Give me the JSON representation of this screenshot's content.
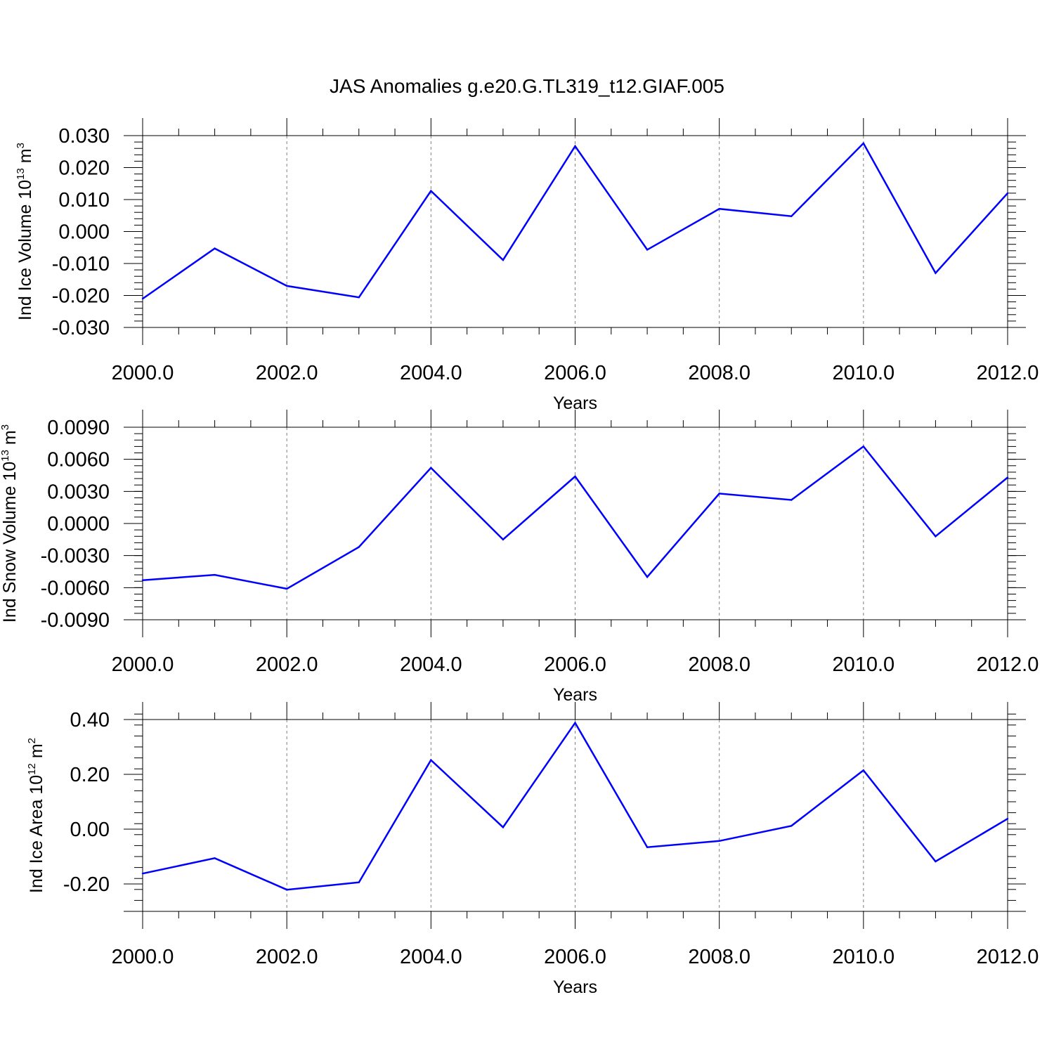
{
  "title": "JAS Anomalies g.e20.G.TL319_t12.GIAF.005",
  "line_color": "#0000ff",
  "grid_color": "#808080",
  "chart_data": [
    {
      "type": "line",
      "xlabel": "Years",
      "ylabel": {
        "main": "Ind Ice Volume 10",
        "exp": "13",
        "unit": " m",
        "unit_exp": "3"
      },
      "xlim": [
        2000,
        2012
      ],
      "ylim": [
        -0.03,
        0.03
      ],
      "x_ticks": [
        "2000.0",
        "2002.0",
        "2004.0",
        "2006.0",
        "2008.0",
        "2010.0",
        "2012.0"
      ],
      "y_ticks": [
        "0.030",
        "0.020",
        "0.010",
        "0.000",
        "-0.010",
        "-0.020",
        "-0.030"
      ],
      "y_tick_values": [
        0.03,
        0.02,
        0.01,
        0.0,
        -0.01,
        -0.02,
        -0.03
      ],
      "y_minor_step": 0.002,
      "grid": "vertical dashed at major x ticks",
      "x": [
        2000,
        2001,
        2002,
        2003,
        2004,
        2005,
        2006,
        2007,
        2008,
        2009,
        2010,
        2011,
        2012
      ],
      "values": [
        -0.021,
        -0.0053,
        -0.017,
        -0.0206,
        0.0127,
        -0.0089,
        0.0267,
        -0.0057,
        0.0071,
        0.0048,
        0.0276,
        -0.013,
        0.012
      ]
    },
    {
      "type": "line",
      "xlabel": "Years",
      "ylabel": {
        "main": "Ind Snow Volume 10",
        "exp": "13",
        "unit": " m",
        "unit_exp": "3"
      },
      "xlim": [
        2000,
        2012
      ],
      "ylim": [
        -0.009,
        0.009
      ],
      "x_ticks": [
        "2000.0",
        "2002.0",
        "2004.0",
        "2006.0",
        "2008.0",
        "2010.0",
        "2012.0"
      ],
      "y_ticks": [
        "0.0090",
        "0.0060",
        "0.0030",
        "0.0000",
        "-0.0030",
        "-0.0060",
        "-0.0090"
      ],
      "y_tick_values": [
        0.009,
        0.006,
        0.003,
        0.0,
        -0.003,
        -0.006,
        -0.009
      ],
      "y_minor_step": 0.0006,
      "grid": "vertical dashed at major x ticks",
      "x": [
        2000,
        2001,
        2002,
        2003,
        2004,
        2005,
        2006,
        2007,
        2008,
        2009,
        2010,
        2011,
        2012
      ],
      "values": [
        -0.0053,
        -0.0048,
        -0.0061,
        -0.0022,
        0.0052,
        -0.0015,
        0.0044,
        -0.005,
        0.0028,
        0.0022,
        0.0072,
        -0.0012,
        0.0043
      ]
    },
    {
      "type": "line",
      "xlabel": "Years",
      "ylabel": {
        "main": "Ind Ice Area 10",
        "exp": "12",
        "unit": " m",
        "unit_exp": "2"
      },
      "xlim": [
        2000,
        2012
      ],
      "ylim": [
        -0.3,
        0.4
      ],
      "x_ticks": [
        "2000.0",
        "2002.0",
        "2004.0",
        "2006.0",
        "2008.0",
        "2010.0",
        "2012.0"
      ],
      "y_ticks": [
        "0.40",
        "0.20",
        "0.00",
        "-0.20"
      ],
      "y_tick_values": [
        0.4,
        0.2,
        0.0,
        -0.2
      ],
      "y_minor_step": 0.04,
      "grid": "vertical dashed at major x ticks",
      "x": [
        2000,
        2001,
        2002,
        2003,
        2004,
        2005,
        2006,
        2007,
        2008,
        2009,
        2010,
        2011,
        2012
      ],
      "values": [
        -0.162,
        -0.106,
        -0.221,
        -0.194,
        0.252,
        0.007,
        0.388,
        -0.066,
        -0.043,
        0.012,
        0.215,
        -0.118,
        0.038
      ]
    }
  ]
}
